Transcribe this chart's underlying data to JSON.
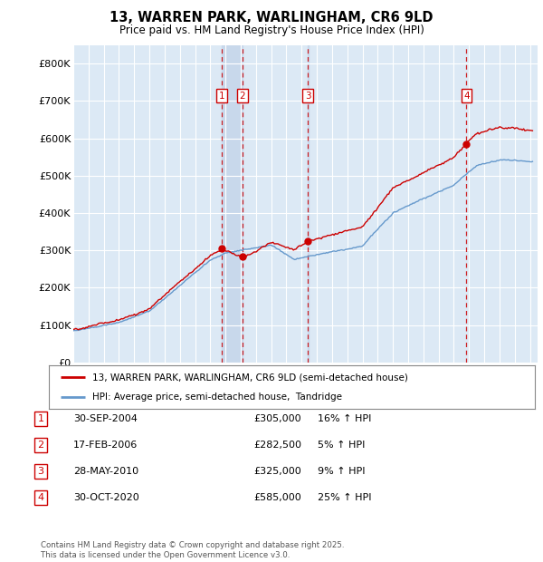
{
  "title": "13, WARREN PARK, WARLINGHAM, CR6 9LD",
  "subtitle": "Price paid vs. HM Land Registry's House Price Index (HPI)",
  "background_color": "#dce9f5",
  "plot_bg_color": "#dce9f5",
  "ylim": [
    0,
    850000
  ],
  "yticks": [
    0,
    100000,
    200000,
    300000,
    400000,
    500000,
    600000,
    700000,
    800000
  ],
  "ytick_labels": [
    "£0",
    "£100K",
    "£200K",
    "£300K",
    "£400K",
    "£500K",
    "£600K",
    "£700K",
    "£800K"
  ],
  "sale_prices": [
    305000,
    282500,
    325000,
    585000
  ],
  "sale_labels": [
    "1",
    "2",
    "3",
    "4"
  ],
  "sale_pct": [
    "16%",
    "5%",
    "9%",
    "25%"
  ],
  "sale_date_strs": [
    "30-SEP-2004",
    "17-FEB-2006",
    "28-MAY-2010",
    "30-OCT-2020"
  ],
  "sale_price_strs": [
    "£305,000",
    "£282,500",
    "£325,000",
    "£585,000"
  ],
  "legend_line1": "13, WARREN PARK, WARLINGHAM, CR6 9LD (semi-detached house)",
  "legend_line2": "HPI: Average price, semi-detached house,  Tandridge",
  "footer": "Contains HM Land Registry data © Crown copyright and database right 2025.\nThis data is licensed under the Open Government Licence v3.0.",
  "line_color_red": "#cc0000",
  "line_color_blue": "#6699cc",
  "dashed_color": "#cc0000",
  "shade_color": "#c5d9ee"
}
